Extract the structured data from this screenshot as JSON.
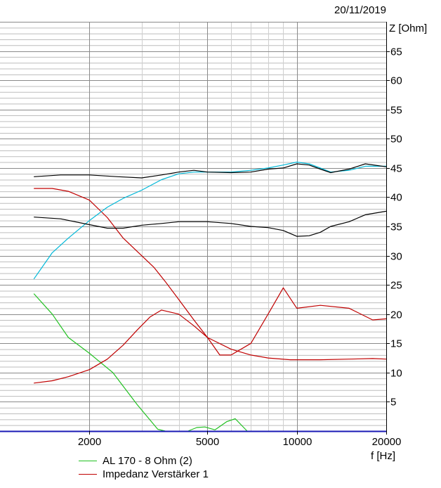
{
  "date": "20/11/2019",
  "chart_data": {
    "type": "line",
    "title": "",
    "ylabel": "Z [Ohm]",
    "xlabel": "f [Hz]",
    "x_scale": "log",
    "xlim": [
      1000,
      20000
    ],
    "ylim": [
      0,
      70
    ],
    "x_ticks": [
      2000,
      5000,
      10000,
      20000
    ],
    "x_tick_labels": [
      "2000",
      "5000",
      "10000",
      "20000"
    ],
    "y_ticks": [
      5,
      10,
      15,
      20,
      25,
      30,
      35,
      40,
      45,
      50,
      55,
      60,
      65
    ],
    "y_tick_labels": [
      "5",
      "10",
      "15",
      "20",
      "25",
      "30",
      "35",
      "40",
      "45",
      "50",
      "55",
      "60",
      "65"
    ],
    "grid": true,
    "legend_position": "bottom-left",
    "series": [
      {
        "name": "AL 170 - 8 Ohm (2)",
        "color": "#22c122",
        "x": [
          1300,
          1500,
          1700,
          2000,
          2400,
          2900,
          3400,
          3600
        ],
        "y": [
          23.5,
          20,
          16,
          13.3,
          10,
          4.5,
          0.3,
          0
        ]
      },
      {
        "name": "",
        "color": "#22c122",
        "x": [
          4300,
          4600,
          4900,
          5300,
          5800,
          6200,
          6800
        ],
        "y": [
          0,
          0.6,
          0.7,
          0.2,
          1.6,
          2.1,
          0
        ]
      },
      {
        "name": "Impedanz Verstärker 1",
        "color": "#c00000",
        "x": [
          1300,
          1500,
          1700,
          2000,
          2300,
          2600,
          3000,
          3300,
          3600,
          4000,
          4500,
          5000,
          5500,
          6000,
          7000,
          8000,
          9000,
          10000,
          12000,
          15000,
          18000,
          20000
        ],
        "y": [
          41.5,
          41.5,
          41,
          39.5,
          36.5,
          33,
          30,
          28,
          25.6,
          22.5,
          19,
          16,
          13,
          13,
          15,
          20,
          24.5,
          21,
          21.5,
          21,
          19,
          19.2
        ]
      },
      {
        "name": "",
        "color": "#c00000",
        "x": [
          1300,
          1500,
          1700,
          2000,
          2300,
          2600,
          2900,
          3200,
          3500,
          4000,
          4500,
          5000,
          6000,
          7000,
          8000,
          9500,
          12000,
          15000,
          18000,
          20000
        ],
        "y": [
          8.2,
          8.6,
          9.3,
          10.5,
          12.3,
          14.7,
          17.3,
          19.5,
          20.7,
          20,
          18,
          16,
          14,
          13,
          12.5,
          12.2,
          12.2,
          12.3,
          12.4,
          12.3
        ]
      },
      {
        "name": "",
        "color": "#00b8d8",
        "x": [
          1300,
          1500,
          1700,
          2000,
          2300,
          2600,
          3000,
          3500,
          4000,
          4500,
          5000,
          6000,
          7000,
          8000,
          9000,
          10000,
          11000,
          12000,
          13000,
          15000,
          17000,
          20000
        ],
        "y": [
          26,
          30.5,
          33,
          36,
          38.3,
          39.8,
          41.2,
          43,
          44,
          44.3,
          44.3,
          44.3,
          44.6,
          45,
          45.5,
          46,
          45.7,
          45,
          44.3,
          44.6,
          45.3,
          45.3
        ]
      },
      {
        "name": "",
        "color": "#000000",
        "x": [
          1300,
          1600,
          2000,
          2500,
          3000,
          3500,
          4000,
          4500,
          5000,
          6000,
          7000,
          8000,
          9000,
          10000,
          11000,
          12000,
          13000,
          15000,
          17000,
          20000
        ],
        "y": [
          43.5,
          43.8,
          43.8,
          43.5,
          43.3,
          43.8,
          44.3,
          44.6,
          44.3,
          44.2,
          44.3,
          44.8,
          45,
          45.7,
          45.5,
          44.8,
          44.2,
          44.8,
          45.7,
          45.2
        ]
      },
      {
        "name": "",
        "color": "#000000",
        "x": [
          1300,
          1600,
          2000,
          2300,
          2600,
          3000,
          3500,
          4000,
          4500,
          5000,
          6000,
          7000,
          8000,
          9000,
          10000,
          11000,
          12000,
          13000,
          15000,
          17000,
          20000
        ],
        "y": [
          36.6,
          36.3,
          35.3,
          34.7,
          34.7,
          35.2,
          35.5,
          35.8,
          35.8,
          35.8,
          35.5,
          35,
          34.8,
          34.3,
          33.3,
          33.4,
          34,
          35,
          35.8,
          37,
          37.6
        ]
      }
    ]
  }
}
